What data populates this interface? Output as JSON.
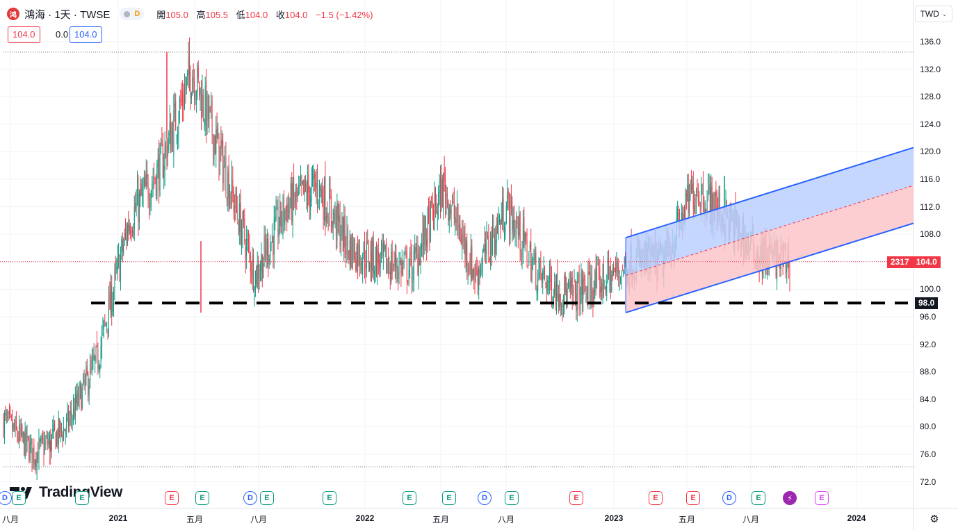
{
  "legend": {
    "logo_text": "鸿",
    "title": "鴻海 · 1天 · TWSE",
    "delay_letter": "D",
    "open_label": "開",
    "open_value": "105.0",
    "high_label": "高",
    "high_value": "105.5",
    "low_label": "低",
    "low_value": "104.0",
    "close_label": "收",
    "close_value": "104.0",
    "change": "−1.5 (−1.42%)"
  },
  "order_boxes": {
    "sell": "104.0",
    "spread": "0.0",
    "buy": "104.0"
  },
  "currency_button": "TWD",
  "brand": "TradingView",
  "price_axis": [
    "136.0",
    "132.0",
    "128.0",
    "124.0",
    "120.0",
    "116.0",
    "112.0",
    "108.0",
    "104.0",
    "100.0",
    "96.0",
    "92.0",
    "88.0",
    "84.0",
    "80.0",
    "76.0",
    "72.0"
  ],
  "time_axis": [
    {
      "label": "八月",
      "bold": false
    },
    {
      "label": "2021",
      "bold": true
    },
    {
      "label": "五月",
      "bold": false
    },
    {
      "label": "八月",
      "bold": false
    },
    {
      "label": "2022",
      "bold": true
    },
    {
      "label": "五月",
      "bold": false
    },
    {
      "label": "八月",
      "bold": false
    },
    {
      "label": "2023",
      "bold": true
    },
    {
      "label": "五月",
      "bold": false
    },
    {
      "label": "八月",
      "bold": false
    },
    {
      "label": "2024",
      "bold": true
    }
  ],
  "last_price_tag": {
    "volume": "2317",
    "price": "104.0"
  },
  "support_tag": "98.0",
  "events": [
    {
      "type": "D",
      "color": "#2962ff"
    },
    {
      "type": "E",
      "color": "#089981"
    },
    {
      "type": "E",
      "color": "#089981"
    },
    {
      "type": "E",
      "color": "#f23645"
    },
    {
      "type": "E",
      "color": "#089981"
    },
    {
      "type": "D",
      "color": "#2962ff"
    },
    {
      "type": "E",
      "color": "#089981"
    },
    {
      "type": "E",
      "color": "#089981"
    },
    {
      "type": "E",
      "color": "#089981"
    },
    {
      "type": "E",
      "color": "#089981"
    },
    {
      "type": "D",
      "color": "#2962ff"
    },
    {
      "type": "E",
      "color": "#089981"
    },
    {
      "type": "E",
      "color": "#f23645"
    },
    {
      "type": "E",
      "color": "#f23645"
    },
    {
      "type": "E",
      "color": "#f23645"
    },
    {
      "type": "D",
      "color": "#2962ff"
    },
    {
      "type": "E",
      "color": "#089981"
    },
    {
      "type": "⚡",
      "color": "#9c27b0"
    },
    {
      "type": "E",
      "color": "#e040fb"
    }
  ],
  "colors": {
    "up": "#089981",
    "down": "#f23645",
    "channel_line": "#2962ff",
    "channel_upper_fill": "#bcd0ff",
    "channel_lower_fill": "#fbc5ca"
  },
  "chart_data": {
    "type": "candlestick",
    "symbol": "鴻海",
    "interval": "1天",
    "exchange": "TWSE",
    "ylim": [
      70.0,
      138.0
    ],
    "approx_close_path": [
      {
        "date": "2020-08",
        "close": 81
      },
      {
        "date": "2020-10",
        "close": 76
      },
      {
        "date": "2020-11",
        "close": 80
      },
      {
        "date": "2020-12",
        "close": 90
      },
      {
        "date": "2021-01",
        "close": 110
      },
      {
        "date": "2021-02",
        "close": 118
      },
      {
        "date": "2021-03",
        "close": 132
      },
      {
        "date": "2021-04",
        "close": 118
      },
      {
        "date": "2021-05",
        "close": 102
      },
      {
        "date": "2021-07",
        "close": 112
      },
      {
        "date": "2021-08",
        "close": 115
      },
      {
        "date": "2021-10",
        "close": 106
      },
      {
        "date": "2022-01",
        "close": 104
      },
      {
        "date": "2022-03",
        "close": 103
      },
      {
        "date": "2022-05",
        "close": 115
      },
      {
        "date": "2022-07",
        "close": 102
      },
      {
        "date": "2022-08",
        "close": 112
      },
      {
        "date": "2022-10",
        "close": 102
      },
      {
        "date": "2022-12",
        "close": 99
      },
      {
        "date": "2023-01",
        "close": 101
      },
      {
        "date": "2023-03",
        "close": 104
      },
      {
        "date": "2023-05",
        "close": 104
      },
      {
        "date": "2023-07",
        "close": 115
      },
      {
        "date": "2023-08",
        "close": 110
      },
      {
        "date": "2023-09",
        "close": 105
      },
      {
        "date": "2023-10",
        "close": 104
      }
    ],
    "last_close": 104.0,
    "support_line": 98.0,
    "max_high": 134.5,
    "min_low": 74.5,
    "channel": {
      "start": "2022-12",
      "end": "2024-02",
      "lower_start": 96.6,
      "lower_end": 109.6,
      "upper_start": 107.5,
      "upper_end": 120.6,
      "middle_start": 102.0,
      "middle_end": 115.1
    },
    "grid": true
  }
}
